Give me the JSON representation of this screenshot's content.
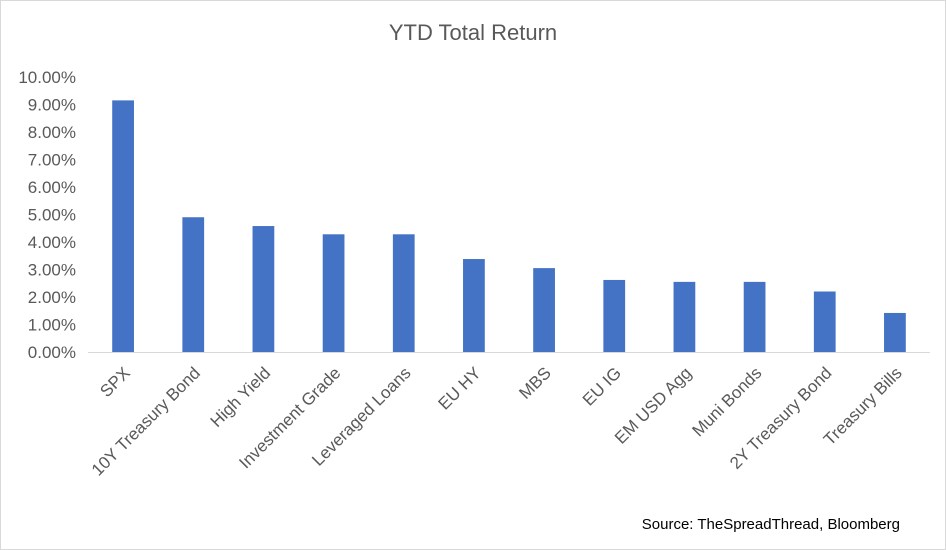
{
  "chart_data": {
    "type": "bar",
    "title": "YTD Total Return",
    "source": "Source: TheSpreadThread, Bloomberg",
    "categories": [
      "SPX",
      "10Y Treasury Bond",
      "High Yield",
      "Investment Grade",
      "Leveraged Loans",
      "EU HY",
      "MBS",
      "EU IG",
      "EM USD Agg",
      "Muni Bonds",
      "2Y Treasury Bond",
      "Treasury Bills"
    ],
    "values": [
      9.15,
      4.9,
      4.58,
      4.28,
      4.28,
      3.38,
      3.05,
      2.62,
      2.55,
      2.55,
      2.2,
      1.42
    ],
    "ylim": [
      0,
      10
    ],
    "yticks": [
      "0.00%",
      "1.00%",
      "2.00%",
      "3.00%",
      "4.00%",
      "5.00%",
      "6.00%",
      "7.00%",
      "8.00%",
      "9.00%",
      "10.00%"
    ],
    "bar_color": "#4472c4",
    "grid": false,
    "legend": "none"
  }
}
